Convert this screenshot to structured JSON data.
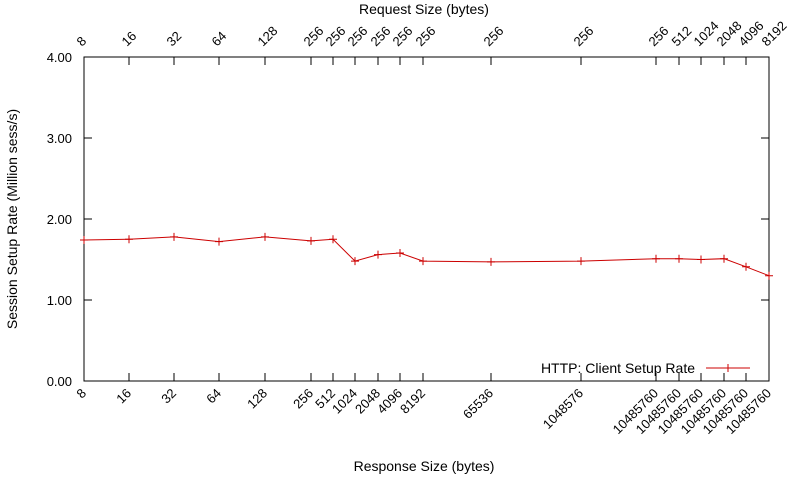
{
  "chart_data": {
    "type": "line",
    "title": "",
    "xlabel_bottom": "Response Size (bytes)",
    "xlabel_top": "Request Size (bytes)",
    "ylabel": "Session Setup Rate (Million sess/s)",
    "ylim": [
      0,
      4
    ],
    "yticks": [
      "0.00",
      "1.00",
      "2.00",
      "3.00",
      "4.00"
    ],
    "grid": false,
    "legend_position": "bottom-right",
    "series": [
      {
        "name": "HTTP: Client Setup Rate",
        "color": "#cc0000",
        "marker": "plus",
        "points": [
          {
            "response": "8",
            "request": "8",
            "y": 1.74
          },
          {
            "response": "16",
            "request": "16",
            "y": 1.75
          },
          {
            "response": "32",
            "request": "32",
            "y": 1.78
          },
          {
            "response": "64",
            "request": "64",
            "y": 1.72
          },
          {
            "response": "128",
            "request": "128",
            "y": 1.78
          },
          {
            "response": "256",
            "request": "256",
            "y": 1.73
          },
          {
            "response": "512",
            "request": "256",
            "y": 1.75
          },
          {
            "response": "1024",
            "request": "256",
            "y": 1.48
          },
          {
            "response": "2048",
            "request": "256",
            "y": 1.56
          },
          {
            "response": "4096",
            "request": "256",
            "y": 1.58
          },
          {
            "response": "8192",
            "request": "256",
            "y": 1.48
          },
          {
            "response": "65536",
            "request": "256",
            "y": 1.47
          },
          {
            "response": "1048576",
            "request": "256",
            "y": 1.48
          },
          {
            "response": "10485760",
            "request": "256",
            "y": 1.51
          },
          {
            "response": "10485760",
            "request": "512",
            "y": 1.51
          },
          {
            "response": "10485760",
            "request": "1024",
            "y": 1.5
          },
          {
            "response": "10485760",
            "request": "2048",
            "y": 1.51
          },
          {
            "response": "10485760",
            "request": "4096",
            "y": 1.41
          },
          {
            "response": "10485760",
            "request": "8192",
            "y": 1.3
          }
        ]
      }
    ]
  }
}
